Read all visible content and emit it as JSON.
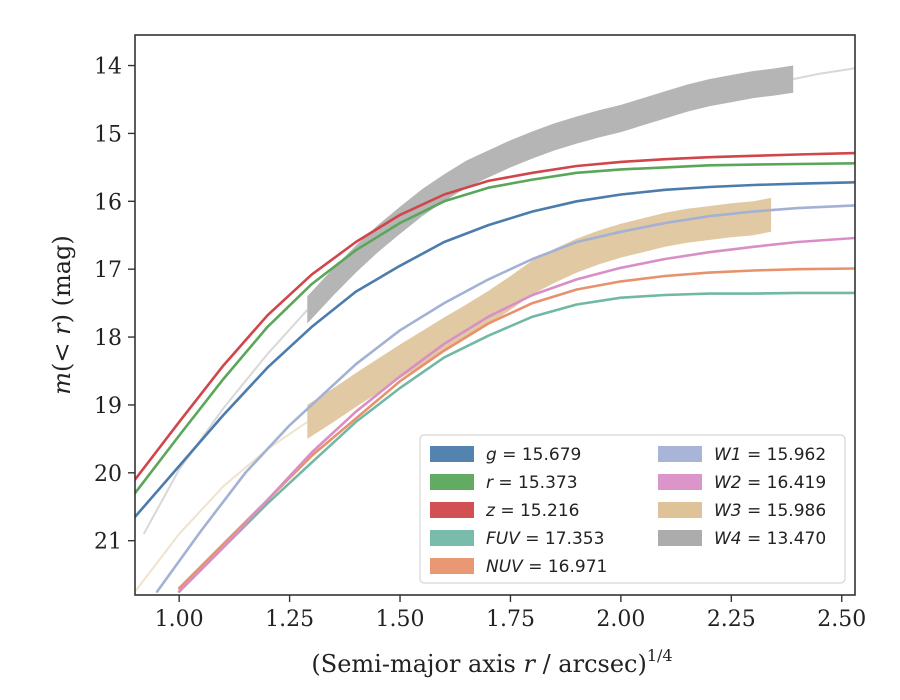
{
  "chart_data": {
    "type": "line",
    "title": "",
    "xlabel": "(Semi-major axis r / arcsec)^1/4",
    "xlabel_parts": {
      "prefix": "(Semi-major axis ",
      "var": "r",
      "suffix": " / arcsec)",
      "exponent": "1/4"
    },
    "ylabel": "m(< r) (mag)",
    "ylabel_parts": {
      "italic": "m",
      "rest1": "(",
      "op": "< ",
      "var": "r",
      "rest2": ") (mag)"
    },
    "xlim": [
      0.9,
      2.53
    ],
    "ylim": [
      21.8,
      13.55
    ],
    "y_inverted": true,
    "xticks": [
      "1.00",
      "1.25",
      "1.50",
      "1.75",
      "2.00",
      "2.25",
      "2.50"
    ],
    "yticks": [
      "14",
      "15",
      "16",
      "17",
      "18",
      "19",
      "20",
      "21"
    ],
    "grid": false,
    "legend_position": "lower-right",
    "series": [
      {
        "name": "g",
        "mag": "15.679",
        "legend": "g = 15.679",
        "style": "line",
        "color": "#4c7cab",
        "x": [
          0.9,
          1.0,
          1.1,
          1.2,
          1.3,
          1.4,
          1.5,
          1.6,
          1.7,
          1.8,
          1.9,
          2.0,
          2.1,
          2.2,
          2.3,
          2.4,
          2.53
        ],
        "y": [
          20.65,
          19.9,
          19.15,
          18.45,
          17.85,
          17.33,
          16.95,
          16.6,
          16.35,
          16.15,
          16.0,
          15.9,
          15.83,
          15.79,
          15.76,
          15.74,
          15.72
        ]
      },
      {
        "name": "r",
        "mag": "15.373",
        "legend": "r = 15.373",
        "style": "line",
        "color": "#5aa65a",
        "x": [
          0.9,
          1.0,
          1.1,
          1.2,
          1.3,
          1.4,
          1.5,
          1.6,
          1.7,
          1.8,
          1.9,
          2.0,
          2.1,
          2.2,
          2.3,
          2.4,
          2.53
        ],
        "y": [
          20.3,
          19.45,
          18.62,
          17.85,
          17.22,
          16.72,
          16.32,
          16.0,
          15.8,
          15.68,
          15.58,
          15.53,
          15.5,
          15.47,
          15.46,
          15.45,
          15.44
        ]
      },
      {
        "name": "z",
        "mag": "15.216",
        "legend": "z = 15.216",
        "style": "line",
        "color": "#d0464b",
        "x": [
          0.9,
          1.0,
          1.1,
          1.2,
          1.3,
          1.4,
          1.5,
          1.6,
          1.7,
          1.8,
          1.9,
          2.0,
          2.1,
          2.2,
          2.3,
          2.4,
          2.53
        ],
        "y": [
          20.1,
          19.25,
          18.42,
          17.68,
          17.08,
          16.6,
          16.2,
          15.9,
          15.7,
          15.58,
          15.48,
          15.42,
          15.38,
          15.35,
          15.33,
          15.31,
          15.29
        ]
      },
      {
        "name": "FUV",
        "mag": "17.353",
        "legend": "FUV = 17.353",
        "style": "line",
        "color": "#72b8a6",
        "x": [
          1.0,
          1.1,
          1.2,
          1.3,
          1.4,
          1.5,
          1.6,
          1.7,
          1.8,
          1.9,
          2.0,
          2.1,
          2.2,
          2.3,
          2.4,
          2.53
        ],
        "y": [
          21.75,
          21.1,
          20.45,
          19.85,
          19.25,
          18.75,
          18.3,
          17.98,
          17.7,
          17.52,
          17.42,
          17.38,
          17.36,
          17.36,
          17.35,
          17.35
        ]
      },
      {
        "name": "NUV",
        "mag": "16.971",
        "legend": "NUV = 16.971",
        "style": "line",
        "color": "#e8926d",
        "x": [
          1.0,
          1.1,
          1.2,
          1.3,
          1.4,
          1.5,
          1.6,
          1.7,
          1.8,
          1.9,
          2.0,
          2.1,
          2.2,
          2.3,
          2.4,
          2.53
        ],
        "y": [
          21.7,
          21.05,
          20.4,
          19.75,
          19.2,
          18.65,
          18.2,
          17.8,
          17.5,
          17.3,
          17.18,
          17.1,
          17.05,
          17.02,
          17.0,
          16.99
        ]
      },
      {
        "name": "W1",
        "mag": "15.962",
        "legend": "W1 = 15.962",
        "style": "line",
        "color": "#a3b1d4",
        "x": [
          0.95,
          1.05,
          1.15,
          1.25,
          1.3,
          1.4,
          1.5,
          1.6,
          1.7,
          1.8,
          1.9,
          2.0,
          2.1,
          2.2,
          2.3,
          2.4,
          2.53
        ],
        "y": [
          21.75,
          20.85,
          20.0,
          19.3,
          19.0,
          18.4,
          17.9,
          17.5,
          17.15,
          16.85,
          16.6,
          16.45,
          16.32,
          16.22,
          16.15,
          16.1,
          16.06
        ]
      },
      {
        "name": "W2",
        "mag": "16.419",
        "legend": "W2 = 16.419",
        "style": "line",
        "color": "#d98fc5",
        "x": [
          1.0,
          1.1,
          1.2,
          1.3,
          1.4,
          1.5,
          1.6,
          1.7,
          1.8,
          1.9,
          2.0,
          2.1,
          2.2,
          2.3,
          2.4,
          2.53
        ],
        "y": [
          21.75,
          21.1,
          20.4,
          19.7,
          19.1,
          18.58,
          18.1,
          17.7,
          17.38,
          17.15,
          16.98,
          16.85,
          16.75,
          16.67,
          16.6,
          16.54
        ]
      },
      {
        "name": "W3",
        "mag": "15.986",
        "legend": "W3 = 15.986",
        "style": "band",
        "color": "#dcc093",
        "x": [
          1.29,
          1.35,
          1.4,
          1.45,
          1.5,
          1.55,
          1.6,
          1.65,
          1.7,
          1.75,
          1.8,
          1.85,
          1.9,
          1.95,
          2.0,
          2.05,
          2.1,
          2.15,
          2.2,
          2.25,
          2.3,
          2.34
        ],
        "y": [
          19.25,
          19.0,
          18.78,
          18.57,
          18.36,
          18.16,
          17.96,
          17.77,
          17.57,
          17.35,
          17.12,
          16.95,
          16.8,
          16.68,
          16.58,
          16.5,
          16.42,
          16.36,
          16.32,
          16.28,
          16.25,
          16.2
        ],
        "spread": 0.25,
        "faint_x": [
          0.9,
          1.0,
          1.1,
          1.2,
          1.29
        ],
        "faint_y": [
          21.75,
          20.9,
          20.2,
          19.65,
          19.25
        ]
      },
      {
        "name": "W4",
        "mag": "13.470",
        "legend": "W4 = 13.470",
        "style": "band",
        "color": "#a8a8a8",
        "x": [
          1.29,
          1.35,
          1.4,
          1.45,
          1.5,
          1.55,
          1.6,
          1.65,
          1.7,
          1.75,
          1.8,
          1.85,
          1.9,
          1.95,
          2.0,
          2.05,
          2.1,
          2.15,
          2.2,
          2.25,
          2.3,
          2.35,
          2.39
        ],
        "y": [
          17.6,
          17.18,
          16.85,
          16.55,
          16.28,
          16.02,
          15.8,
          15.6,
          15.45,
          15.3,
          15.17,
          15.05,
          14.95,
          14.86,
          14.78,
          14.68,
          14.58,
          14.48,
          14.4,
          14.34,
          14.28,
          14.24,
          14.2
        ],
        "spread": 0.2,
        "faint_x": [
          0.92,
          1.0,
          1.1,
          1.2,
          1.29
        ],
        "faint_y": [
          20.9,
          19.95,
          19.05,
          18.25,
          17.6
        ],
        "faint_tail_x": [
          2.39,
          2.45,
          2.53
        ],
        "faint_tail_y": [
          14.2,
          14.12,
          14.04
        ]
      }
    ]
  }
}
